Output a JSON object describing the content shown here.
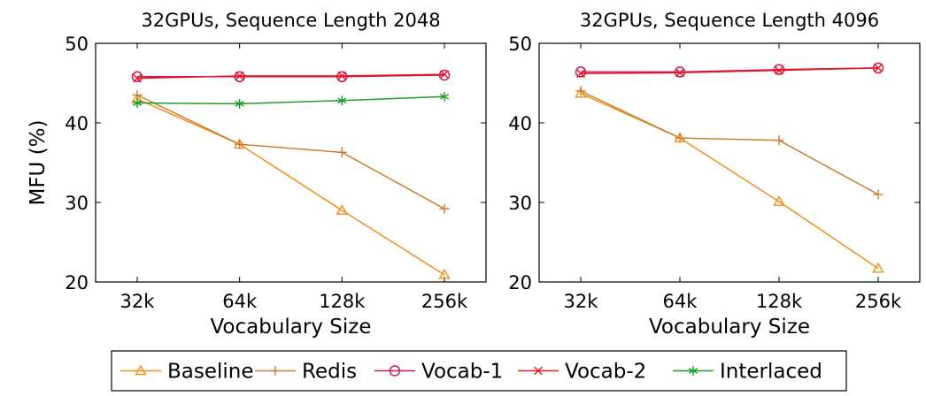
{
  "chart_data": [
    {
      "type": "line",
      "title": "32GPUs, Sequence Length 2048",
      "xlabel": "Vocabulary Size",
      "ylabel": "MFU (%)",
      "categories": [
        "32k",
        "64k",
        "128k",
        "256k"
      ],
      "ylim": [
        20,
        50
      ],
      "yticks": [
        "20",
        "30",
        "40",
        "50"
      ],
      "grid": false,
      "series": [
        {
          "name": "Baseline",
          "values": [
            43.0,
            37.3,
            29.0,
            20.9
          ]
        },
        {
          "name": "Redis",
          "values": [
            43.5,
            37.3,
            36.3,
            29.2
          ]
        },
        {
          "name": "Vocab-1",
          "values": [
            45.8,
            45.8,
            45.8,
            46.0
          ]
        },
        {
          "name": "Vocab-2",
          "values": [
            45.6,
            45.9,
            45.9,
            46.1
          ]
        },
        {
          "name": "Interlaced",
          "values": [
            42.5,
            42.4,
            42.8,
            43.3
          ]
        }
      ]
    },
    {
      "type": "line",
      "title": "32GPUs, Sequence Length 4096",
      "xlabel": "Vocabulary Size",
      "ylabel": "",
      "categories": [
        "32k",
        "64k",
        "128k",
        "256k"
      ],
      "ylim": [
        20,
        50
      ],
      "yticks": [
        "20",
        "30",
        "40",
        "50"
      ],
      "grid": false,
      "series": [
        {
          "name": "Baseline",
          "values": [
            43.7,
            38.1,
            30.1,
            21.7
          ]
        },
        {
          "name": "Redis",
          "values": [
            44.0,
            38.1,
            37.8,
            31.0
          ]
        },
        {
          "name": "Vocab-1",
          "values": [
            46.4,
            46.4,
            46.7,
            46.9
          ]
        },
        {
          "name": "Vocab-2",
          "values": [
            46.2,
            46.3,
            46.6,
            46.9
          ]
        }
      ]
    }
  ],
  "legend": {
    "placement": "bottom",
    "entries": [
      {
        "name": "Baseline",
        "color": "#f28e1c",
        "marker": "triangle"
      },
      {
        "name": "Redis",
        "color": "#c8802f",
        "marker": "plus"
      },
      {
        "name": "Vocab-1",
        "color": "#d4145a",
        "marker": "circle"
      },
      {
        "name": "Vocab-2",
        "color": "#e41a1c",
        "marker": "cross"
      },
      {
        "name": "Interlaced",
        "color": "#1a9e2a",
        "marker": "star"
      }
    ]
  }
}
